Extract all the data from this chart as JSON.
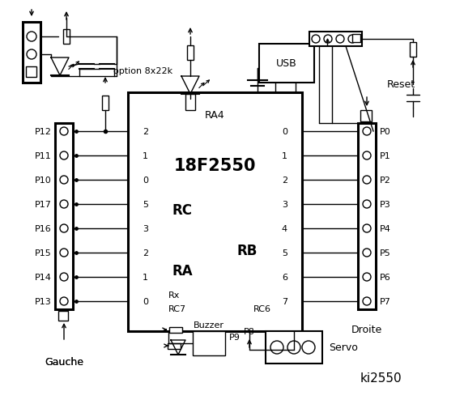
{
  "bg_color": "#ffffff",
  "chip_label": "18F2550",
  "chip_sub": "RA4",
  "title": "ki2550",
  "left_connector_pins": [
    "P12",
    "P11",
    "P10",
    "P17",
    "P16",
    "P15",
    "P14",
    "P13"
  ],
  "right_connector_pins": [
    "P0",
    "P1",
    "P2",
    "P3",
    "P4",
    "P5",
    "P6",
    "P7"
  ],
  "rc_pins": [
    "2",
    "1",
    "0",
    "5",
    "3",
    "2",
    "1",
    "0"
  ],
  "rb_pins": [
    "0",
    "1",
    "2",
    "3",
    "4",
    "5",
    "6",
    "7"
  ],
  "rc_label": "RC",
  "rb_label": "RB",
  "ra_label": "RA",
  "gauche_label": "Gauche",
  "droite_label": "Droite",
  "usb_label": "USB",
  "reset_label": "Reset",
  "servo_label": "Servo",
  "buzzer_label": "Buzzer",
  "p8_label": "P8",
  "p9_label": "P9",
  "option_label": "option 8x22k",
  "rx_label": "Rx",
  "rc7_label": "RC7",
  "rc6_label": "RC6"
}
